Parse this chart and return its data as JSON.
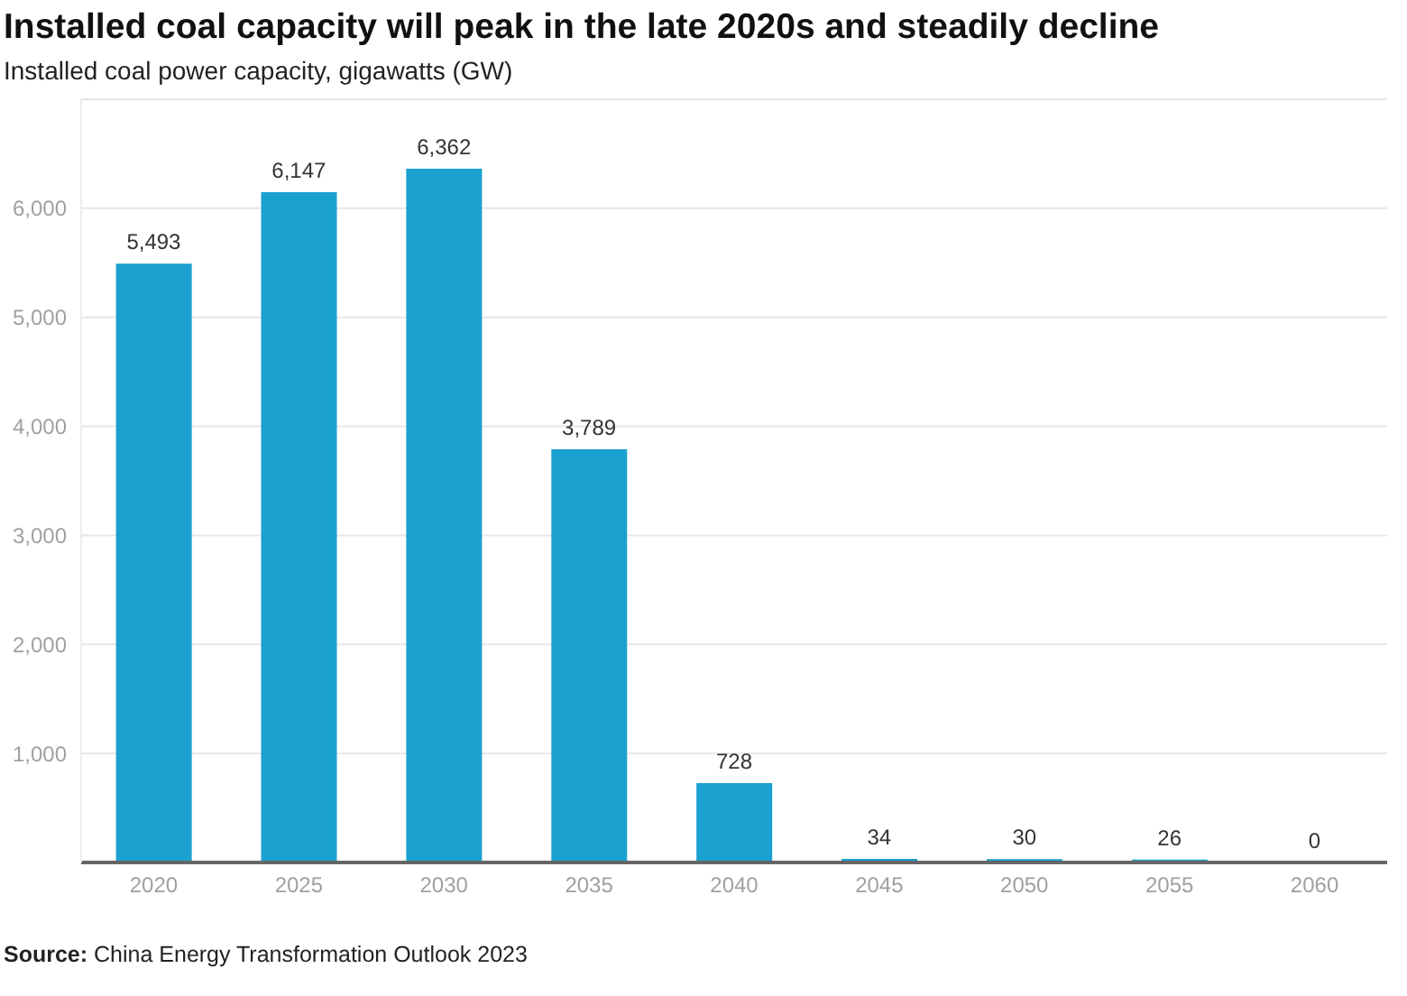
{
  "chart_data": {
    "type": "bar",
    "title": "Installed coal capacity will peak in the late 2020s and steadily decline",
    "subtitle": "Installed coal power capacity, gigawatts (GW)",
    "categories": [
      "2020",
      "2025",
      "2030",
      "2035",
      "2040",
      "2045",
      "2050",
      "2055",
      "2060"
    ],
    "values": [
      5493,
      6147,
      6362,
      3789,
      728,
      34,
      30,
      26,
      0
    ],
    "color": "#1ba1cf",
    "value_labels": [
      "5,493",
      "6,147",
      "6,362",
      "3,789",
      "728",
      "34",
      "30",
      "26",
      "0"
    ],
    "ylim": [
      0,
      7000
    ],
    "yticks": [
      {
        "value": 1000,
        "label": "1,000"
      },
      {
        "value": 2000,
        "label": "2,000"
      },
      {
        "value": 3000,
        "label": "3,000"
      },
      {
        "value": 4000,
        "label": "4,000"
      },
      {
        "value": 5000,
        "label": "5,000"
      },
      {
        "value": 6000,
        "label": "6,000"
      }
    ],
    "grid": "y",
    "annotations": [
      "Source: China Energy Transformation Outlook 2023"
    ]
  }
}
